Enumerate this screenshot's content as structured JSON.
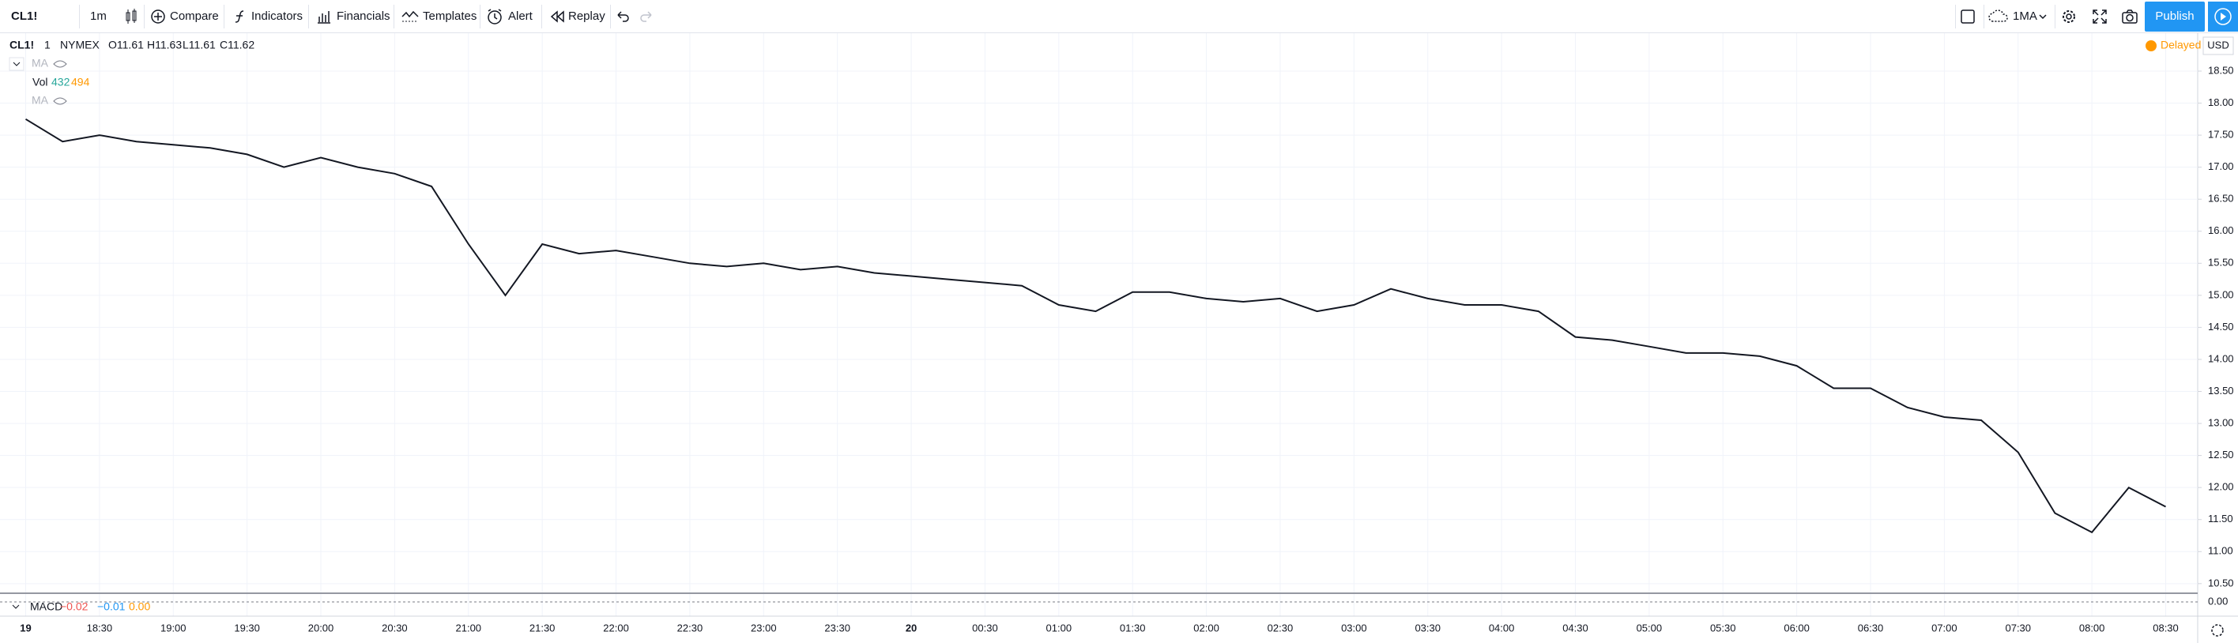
{
  "toolbar": {
    "symbol": "CL1!",
    "interval": "1m",
    "buttons": [
      "Compare",
      "Indicators",
      "Financials",
      "Templates",
      "Alert",
      "Replay"
    ],
    "layout": "1MA",
    "publish": "Publish"
  },
  "legend": {
    "symbol": "CL1!",
    "interval": "1",
    "exchange": "NYMEX",
    "ohlc": [
      "O11.61",
      "H11.63",
      "L11.61",
      "C11.62"
    ],
    "ma": "MA",
    "vol": "Vol",
    "vol_values": [
      "432",
      "494"
    ],
    "ma2": "MA",
    "status": "Delayed",
    "currency": "USD",
    "macd": "MACD",
    "macd_values": [
      "−0.02",
      "−0.01",
      "0.00"
    ],
    "macd_axis": "0.00"
  },
  "chart_data": {
    "type": "line",
    "color": "#131722",
    "categories": [
      "19",
      null,
      "18:30",
      null,
      "19:00",
      null,
      "19:30",
      null,
      "20:00",
      null,
      "20:30",
      null,
      "21:00",
      null,
      "21:30",
      null,
      "22:00",
      null,
      "22:30",
      null,
      "23:00",
      null,
      "23:30",
      null,
      "20",
      null,
      "00:30",
      null,
      "01:00",
      null,
      "01:30",
      null,
      "02:00",
      null,
      "02:30",
      null,
      "03:00",
      null,
      "03:30",
      null,
      "04:00",
      null,
      "04:30",
      null,
      "05:00",
      null,
      "05:30",
      null,
      "06:00",
      null,
      "06:30",
      null,
      "07:00",
      null,
      "07:30",
      null,
      "08:00",
      null,
      "08:30"
    ],
    "values": [
      17.75,
      17.4,
      17.5,
      17.4,
      17.35,
      17.3,
      17.2,
      17.0,
      17.15,
      17.0,
      16.9,
      16.7,
      15.8,
      15.0,
      15.8,
      15.65,
      15.7,
      15.6,
      15.5,
      15.45,
      15.5,
      15.4,
      15.45,
      15.35,
      15.3,
      15.25,
      15.2,
      15.15,
      14.85,
      14.75,
      15.05,
      15.05,
      14.95,
      14.9,
      14.95,
      14.75,
      14.85,
      15.1,
      14.95,
      14.85,
      14.85,
      14.75,
      14.35,
      14.3,
      14.2,
      14.1,
      14.1,
      14.05,
      13.9,
      13.55,
      13.55,
      13.25,
      13.1,
      13.05,
      12.55,
      11.6,
      11.3,
      12.0,
      11.7
    ],
    "ylim": [
      10.35,
      19.03
    ],
    "yticks": [
      {
        "value": 10.5,
        "label": "10.50"
      },
      {
        "value": 11,
        "label": "11.00"
      },
      {
        "value": 11.5,
        "label": "11.50"
      },
      {
        "value": 12,
        "label": "12.00"
      },
      {
        "value": 12.5,
        "label": "12.50"
      },
      {
        "value": 13,
        "label": "13.00"
      },
      {
        "value": 13.5,
        "label": "13.50"
      },
      {
        "value": 14,
        "label": "14.00"
      },
      {
        "value": 14.5,
        "label": "14.50"
      },
      {
        "value": 15,
        "label": "15.00"
      },
      {
        "value": 15.5,
        "label": "15.50"
      },
      {
        "value": 16,
        "label": "16.00"
      },
      {
        "value": 16.5,
        "label": "16.50"
      },
      {
        "value": 17,
        "label": "17.00"
      },
      {
        "value": 17.5,
        "label": "17.50"
      },
      {
        "value": 18,
        "label": "18.00"
      },
      {
        "value": 18.5,
        "label": "18.50"
      }
    ],
    "grid": true
  }
}
